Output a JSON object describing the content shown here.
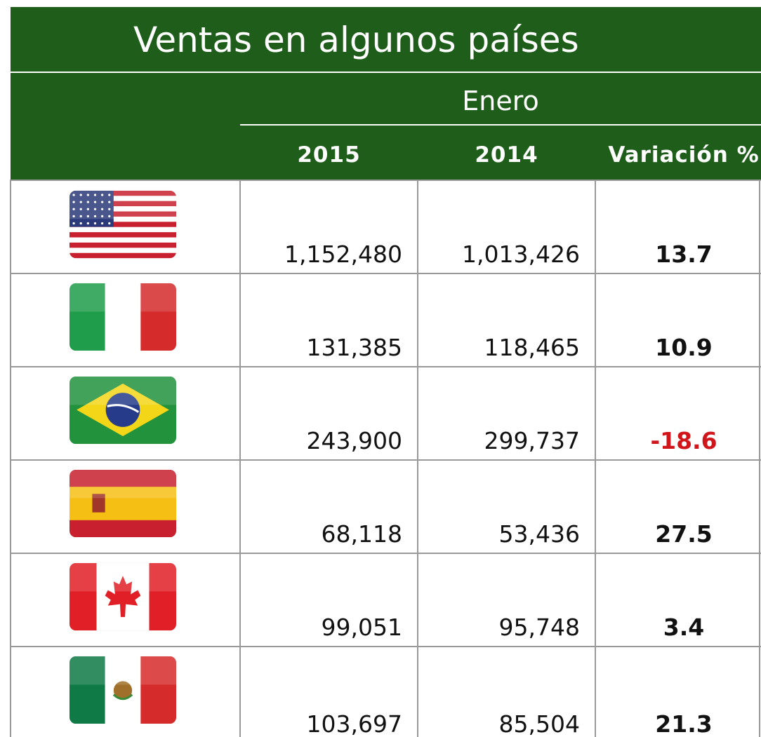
{
  "header": {
    "title": "Ventas en algunos países",
    "group": "Enero",
    "columns": [
      "2015",
      "2014",
      "Variación %"
    ]
  },
  "table": {
    "rows": [
      [
        "1,152,480",
        "1,013,426",
        "13.7"
      ],
      [
        "131,385",
        "118,465",
        "10.9"
      ],
      [
        "243,900",
        "299,737",
        "-18.6"
      ],
      [
        "68,118",
        "53,436",
        "27.5"
      ],
      [
        "99,051",
        "95,748",
        "3.4"
      ],
      [
        "103,697",
        "85,504",
        "21.3"
      ]
    ]
  }
}
